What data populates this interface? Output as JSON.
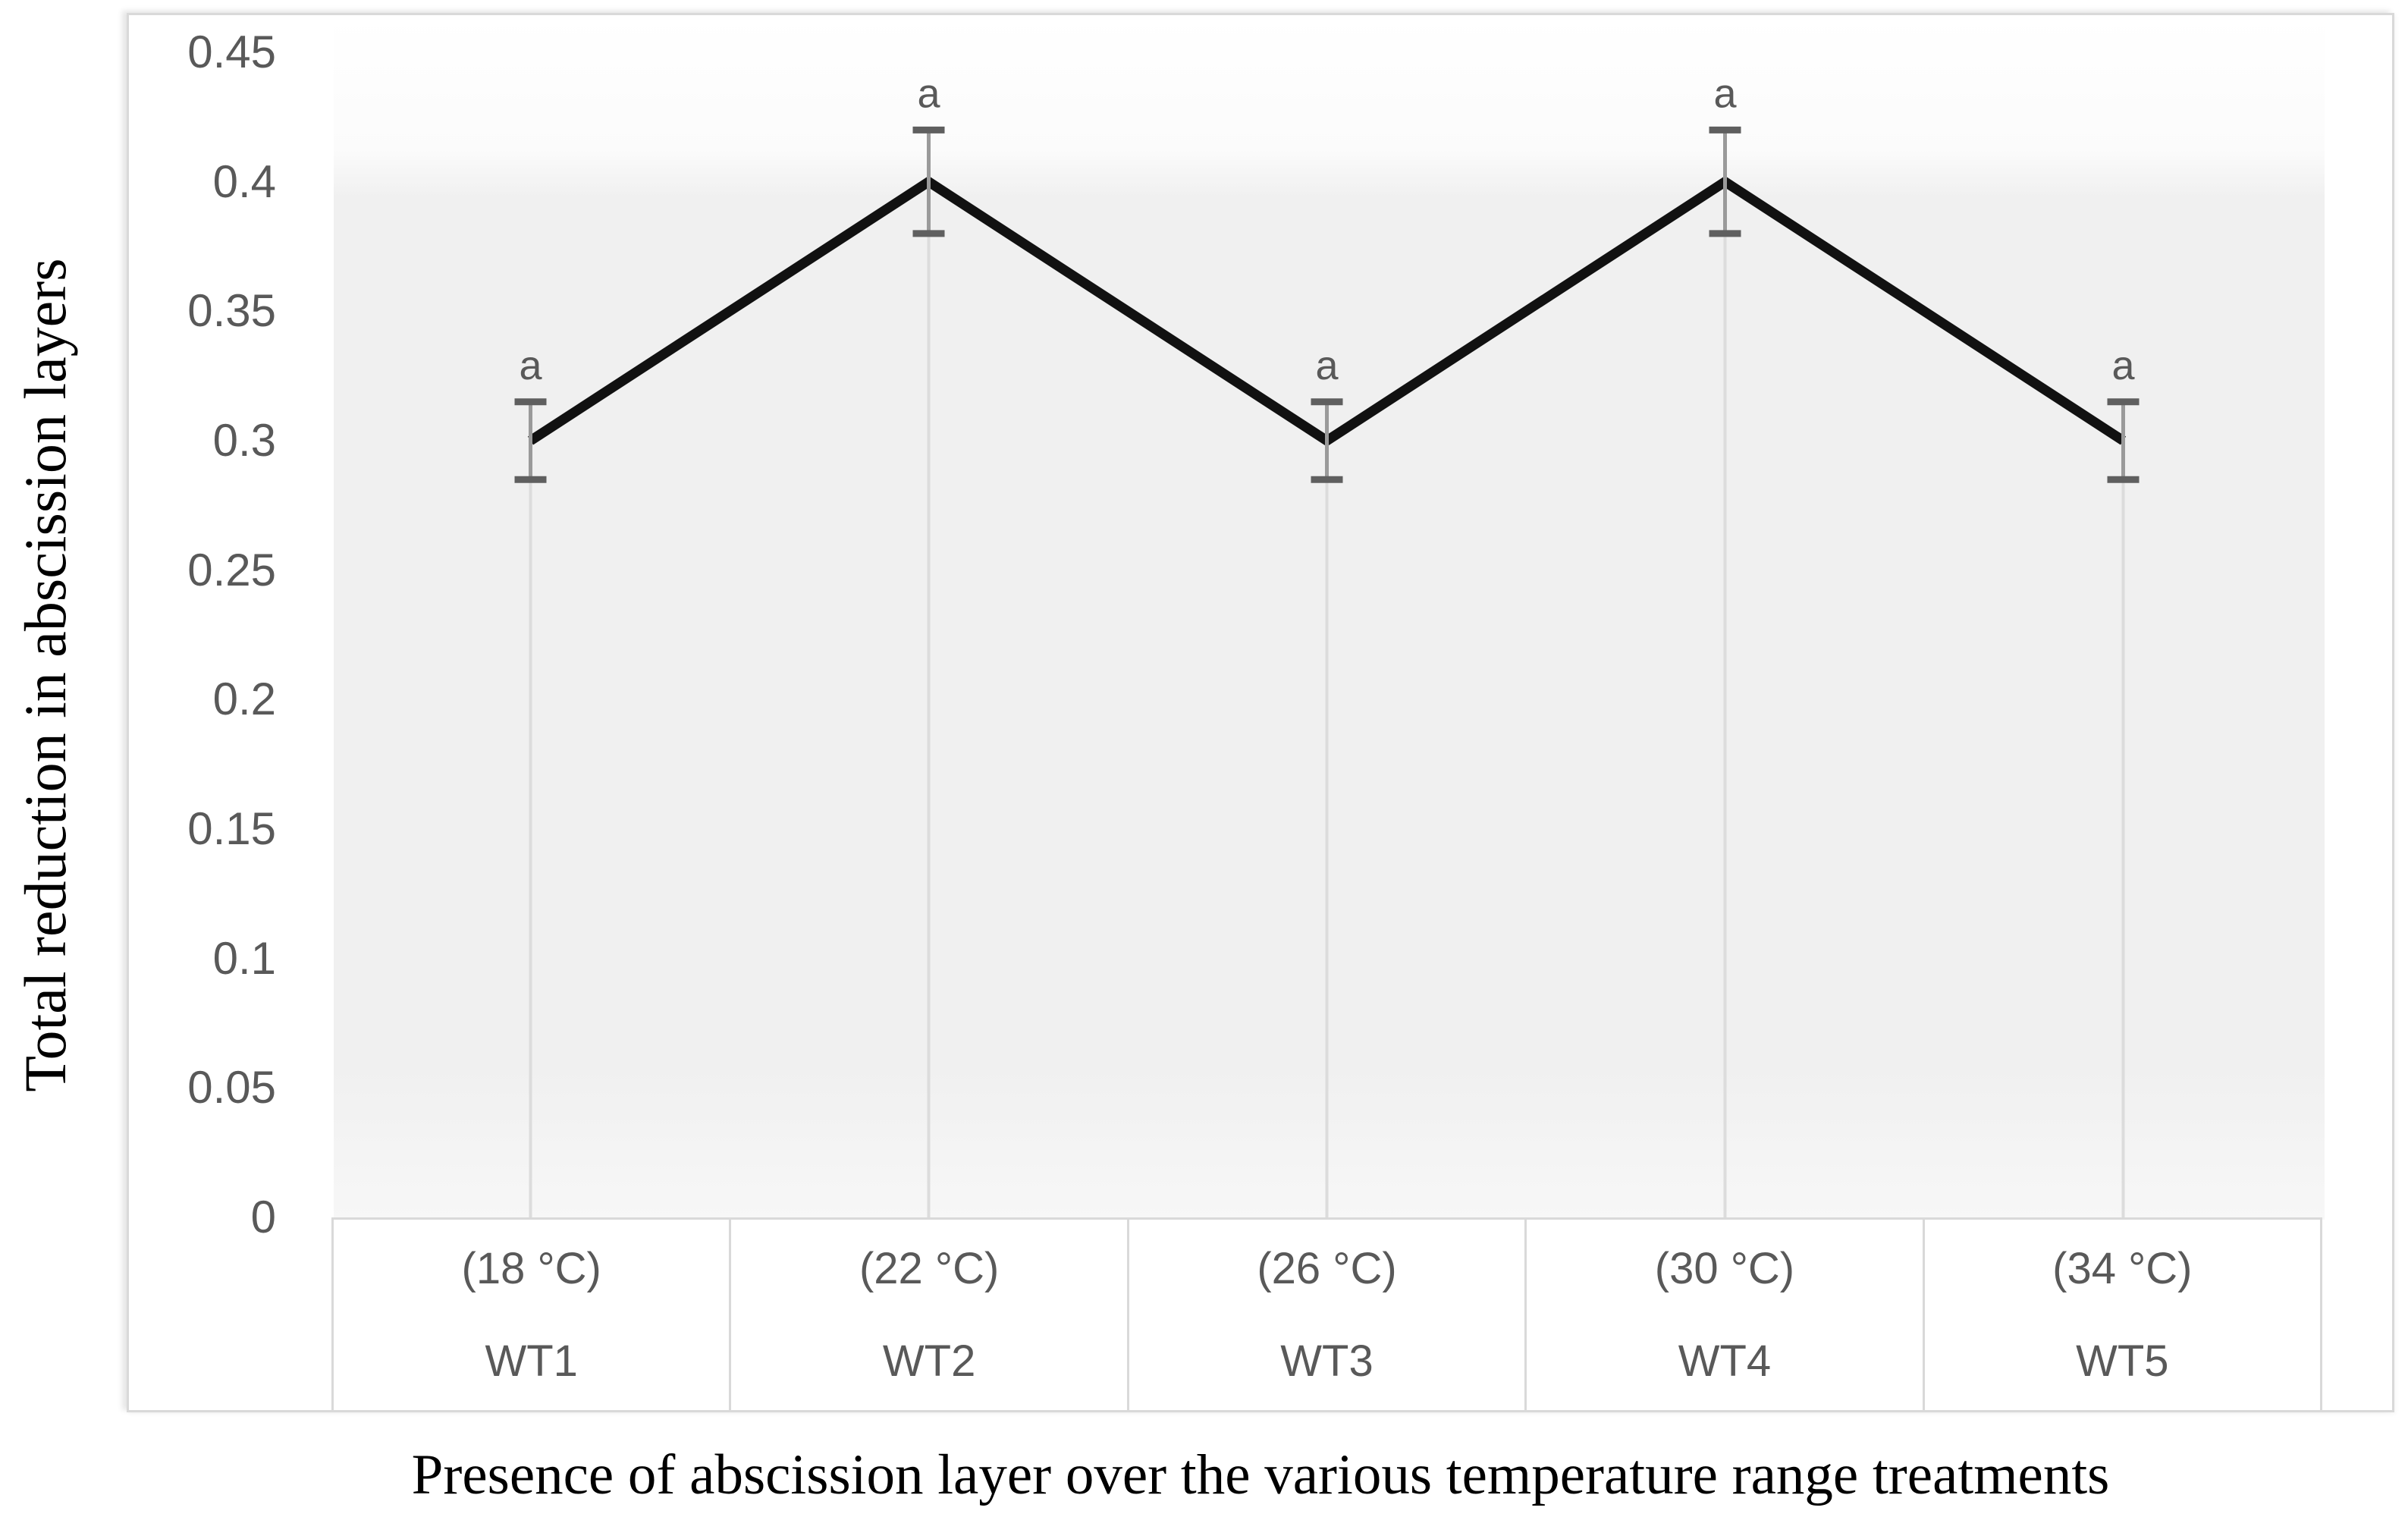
{
  "figure": {
    "x_axis_title": "Presence of abscission layer over the various temperature range treatments",
    "y_axis_title": "Total reduction in abscission layers"
  },
  "chart_data": {
    "type": "line",
    "title": "",
    "xlabel": "Presence of abscission layer over the various temperature range treatments",
    "ylabel": "Total reduction in abscission layers",
    "x_tick_labels_top": [
      "(18 °C)",
      "(22 °C)",
      "(26 °C)",
      "(30 °C)",
      "(34 °C)"
    ],
    "x_tick_labels_bottom": [
      "WT1",
      "WT2",
      "WT3",
      "WT4",
      "WT5"
    ],
    "y_tick_labels": [
      "0",
      "0.05",
      "0.1",
      "0.15",
      "0.2",
      "0.25",
      "0.3",
      "0.35",
      "0.4",
      "0.45"
    ],
    "ylim": [
      0,
      0.45
    ],
    "grid": false,
    "legend": "none",
    "series": [
      {
        "name": "Total reduction in abscission layers",
        "values": [
          0.3,
          0.4,
          0.3,
          0.4,
          0.3
        ],
        "error_bars": [
          0.015,
          0.02,
          0.015,
          0.02,
          0.015
        ],
        "point_labels": [
          "a",
          "a",
          "a",
          "a",
          "a"
        ],
        "color": "#111111"
      }
    ],
    "style": {
      "line_color": "#111111",
      "error_bar_color": "#9a9a9a",
      "error_cap_color": "#5f5f5f",
      "drop_line_color": "#dcdcdc",
      "axis_text_color": "#595959",
      "title_text_color": "#000000",
      "border_color": "#d9d9d9",
      "plot_fill": "#f0f0f0"
    }
  }
}
